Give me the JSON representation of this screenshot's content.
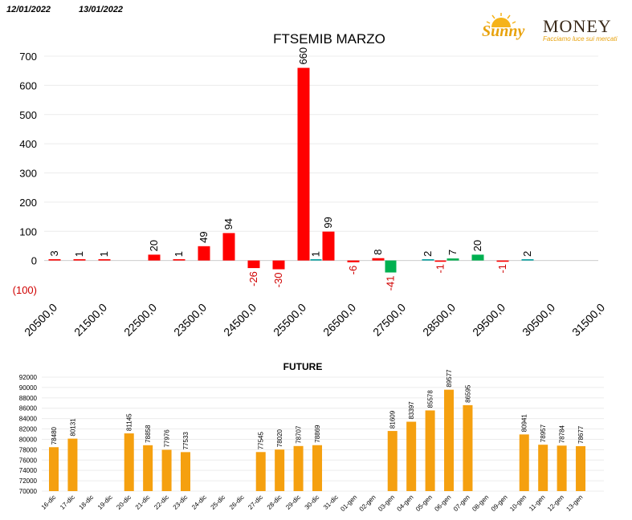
{
  "header": {
    "date_from": "12/01/2022",
    "date_to": "13/01/2022"
  },
  "logo": {
    "sunny": "Sunny",
    "money": "MONEY",
    "tagline": "Facciamo luce sui mercati",
    "icon": "sun-icon"
  },
  "colors": {
    "positive": "#ff0000",
    "negative_label": "#e00000",
    "green": "#00b050",
    "teal": "#00a0a0",
    "future": "#f5a00f"
  },
  "chart_data": [
    {
      "type": "bar",
      "title": "FTSEMIB MARZO",
      "ylim": [
        -100,
        700
      ],
      "yticks": [
        700,
        600,
        500,
        400,
        300,
        200,
        100,
        0,
        -100
      ],
      "ytick_labels": [
        "700",
        "600",
        "500",
        "400",
        "300",
        "200",
        "100",
        "0",
        "(100)"
      ],
      "grid": true,
      "xtick_labels": [
        "20500,0",
        "21500,0",
        "22500,0",
        "23500,0",
        "24500,0",
        "25500,0",
        "26500,0",
        "27500,0",
        "28500,0",
        "29500,0",
        "30500,0",
        "31500,0"
      ],
      "series": [
        {
          "values": [
            3,
            1,
            1,
            null,
            20,
            1,
            49,
            94,
            -26,
            -30,
            660,
            null,
            -6,
            8,
            null,
            -1,
            null,
            20,
            -1,
            null
          ],
          "color": "#ff0000"
        },
        {
          "values": [
            null,
            null,
            null,
            null,
            null,
            null,
            null,
            null,
            null,
            null,
            1,
            99,
            null,
            -41,
            2,
            7,
            null,
            null,
            null,
            2
          ],
          "color": "#00b050"
        }
      ],
      "bars": [
        {
          "slot": 0,
          "value": 3,
          "color": "#ff0000",
          "label": "3"
        },
        {
          "slot": 1,
          "value": 1,
          "color": "#ff0000",
          "label": "1"
        },
        {
          "slot": 2,
          "value": 1,
          "color": "#ff0000",
          "label": "1"
        },
        {
          "slot": 4,
          "value": 20,
          "color": "#ff0000",
          "label": "20"
        },
        {
          "slot": 5,
          "value": 1,
          "color": "#ff0000",
          "label": "1"
        },
        {
          "slot": 6,
          "value": 49,
          "color": "#ff0000",
          "label": "49"
        },
        {
          "slot": 7,
          "value": 94,
          "color": "#ff0000",
          "label": "94"
        },
        {
          "slot": 8,
          "value": -26,
          "color": "#ff0000",
          "label": "-26"
        },
        {
          "slot": 9,
          "value": -30,
          "color": "#ff0000",
          "label": "-30"
        },
        {
          "slot": 10,
          "value": 660,
          "color": "#ff0000",
          "label": "660"
        },
        {
          "slot": 10.5,
          "value": 1,
          "color": "#00a0a0",
          "label": "1"
        },
        {
          "slot": 11,
          "value": 99,
          "color": "#ff0000",
          "label": "99"
        },
        {
          "slot": 12,
          "value": -6,
          "color": "#ff0000",
          "label": "-6"
        },
        {
          "slot": 13,
          "value": 8,
          "color": "#ff0000",
          "label": "8"
        },
        {
          "slot": 13.5,
          "value": -41,
          "color": "#00b050",
          "label": "-41"
        },
        {
          "slot": 15,
          "value": 2,
          "color": "#00a0a0",
          "label": "2"
        },
        {
          "slot": 15.5,
          "value": -1,
          "color": "#ff0000",
          "label": "-1"
        },
        {
          "slot": 16,
          "value": 7,
          "color": "#00b050",
          "label": "7"
        },
        {
          "slot": 17,
          "value": 20,
          "color": "#00b050",
          "label": "20"
        },
        {
          "slot": 18,
          "value": -1,
          "color": "#ff0000",
          "label": "-1"
        },
        {
          "slot": 19,
          "value": 2,
          "color": "#00a0a0",
          "label": "2"
        }
      ]
    },
    {
      "type": "bar",
      "title": "FUTURE",
      "ylim": [
        70000,
        92000
      ],
      "yticks": [
        92000,
        90000,
        88000,
        86000,
        84000,
        82000,
        80000,
        78000,
        76000,
        74000,
        72000,
        70000
      ],
      "ytick_labels": [
        "92000",
        "90000",
        "88000",
        "86000",
        "84000",
        "82000",
        "80000",
        "78000",
        "76000",
        "74000",
        "72000",
        "70000"
      ],
      "categories": [
        "16-dic",
        "17-dic",
        "18-dic",
        "19-dic",
        "20-dic",
        "21-dic",
        "22-dic",
        "23-dic",
        "24-dic",
        "25-dic",
        "26-dic",
        "27-dic",
        "28-dic",
        "29-dic",
        "30-dic",
        "31-dic",
        "01-gen",
        "02-gen",
        "03-gen",
        "04-gen",
        "05-gen",
        "06-gen",
        "07-gen",
        "08-gen",
        "09-gen",
        "10-gen",
        "11-gen",
        "12-gen",
        "13-gen"
      ],
      "values": [
        78480,
        80131,
        null,
        null,
        81145,
        78858,
        77976,
        77533,
        null,
        null,
        null,
        77545,
        78020,
        78707,
        78869,
        null,
        null,
        null,
        81609,
        83397,
        85578,
        89577,
        86595,
        null,
        null,
        80941,
        78957,
        78784,
        78677
      ],
      "value_labels": [
        "78480",
        "80131",
        "",
        "",
        "81145",
        "78858",
        "77976",
        "77533",
        "",
        "",
        "",
        "77545",
        "78020",
        "78707",
        "78869",
        "",
        "",
        "",
        "81609",
        "83397",
        "85578",
        "89577",
        "86595",
        "",
        "",
        "80941",
        "78957",
        "78784",
        "78677"
      ],
      "color": "#f5a00f"
    }
  ]
}
